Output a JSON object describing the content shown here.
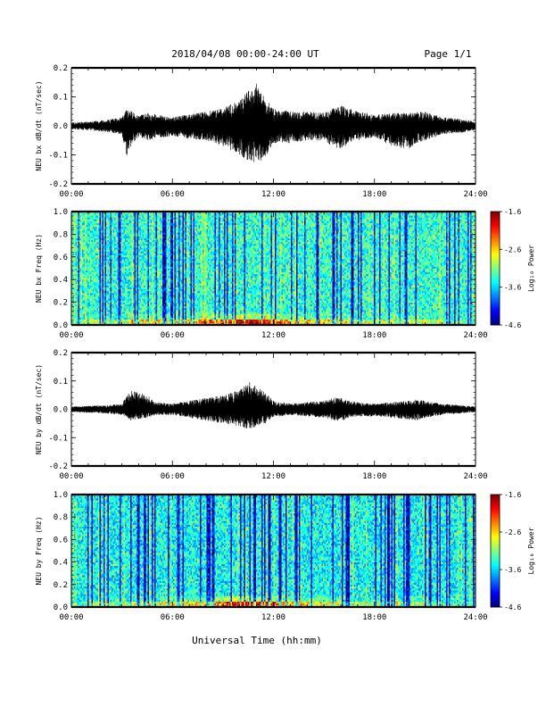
{
  "header": {
    "title": "2018/04/08  00:00-24:00 UT",
    "page": "Page 1/1"
  },
  "x_axis": {
    "title": "Universal Time (hh:mm)",
    "ticks": [
      "00:00",
      "06:00",
      "12:00",
      "18:00",
      "24:00"
    ]
  },
  "chart_data": [
    {
      "type": "line",
      "ylabel": "NEU bx dB/dt (nT/sec)",
      "ylim": [
        -0.2,
        0.2
      ],
      "yticks": [
        "0.2",
        "0.1",
        "0.0",
        "-0.1",
        "-0.2"
      ],
      "xlim": [
        "00:00",
        "24:00"
      ],
      "envelope": {
        "hours": [
          0,
          1,
          2,
          3,
          3.3,
          3.6,
          4,
          4.5,
          5,
          6,
          7,
          8,
          9,
          10,
          10.5,
          11,
          11.5,
          12,
          13,
          14,
          15,
          15.5,
          16,
          16.5,
          17,
          18,
          19,
          20,
          20.5,
          21,
          22,
          23,
          24
        ],
        "max": [
          0.012,
          0.015,
          0.02,
          0.03,
          0.06,
          0.05,
          0.035,
          0.045,
          0.04,
          0.03,
          0.04,
          0.05,
          0.06,
          0.09,
          0.12,
          0.15,
          0.1,
          0.06,
          0.05,
          0.05,
          0.045,
          0.06,
          0.07,
          0.06,
          0.05,
          0.04,
          0.045,
          0.045,
          0.05,
          0.05,
          0.03,
          0.025,
          0.015
        ],
        "min": [
          -0.012,
          -0.015,
          -0.02,
          -0.03,
          -0.11,
          -0.06,
          -0.04,
          -0.05,
          -0.045,
          -0.035,
          -0.045,
          -0.05,
          -0.07,
          -0.1,
          -0.12,
          -0.13,
          -0.11,
          -0.06,
          -0.06,
          -0.05,
          -0.05,
          -0.07,
          -0.08,
          -0.06,
          -0.05,
          -0.04,
          -0.07,
          -0.08,
          -0.06,
          -0.05,
          -0.03,
          -0.025,
          -0.015
        ]
      }
    },
    {
      "type": "heatmap",
      "ylabel": "NEU bx Freq (Hz)",
      "ylim": [
        0.0,
        1.0
      ],
      "yticks": [
        "1.0",
        "0.8",
        "0.6",
        "0.4",
        "0.2",
        "0.0"
      ],
      "xlim": [
        "00:00",
        "24:00"
      ],
      "colorbar": {
        "title": "Log₁₀ Power",
        "ticks": [
          "-1.6",
          "-2.6",
          "-3.6",
          "-4.6"
        ],
        "range": [
          -4.6,
          -1.6
        ]
      },
      "description_level": "background log power about -3.3 with dark vertical striations; enhanced power below 0.05 Hz peaking near 10:00-11:00"
    },
    {
      "type": "line",
      "ylabel": "NEU by dB/dt (nT/sec)",
      "ylim": [
        -0.2,
        0.2
      ],
      "yticks": [
        "0.2",
        "0.1",
        "0.0",
        "-0.1",
        "-0.2"
      ],
      "xlim": [
        "00:00",
        "24:00"
      ],
      "envelope": {
        "hours": [
          0,
          1,
          2,
          3,
          3.5,
          4,
          4.5,
          5,
          6,
          7,
          8,
          9,
          10,
          10.5,
          11,
          11.5,
          12,
          13,
          14,
          15,
          15.5,
          16,
          16.5,
          17,
          18,
          19,
          20,
          20.5,
          21,
          22,
          23,
          24
        ],
        "max": [
          0.01,
          0.012,
          0.015,
          0.02,
          0.065,
          0.06,
          0.05,
          0.025,
          0.02,
          0.03,
          0.04,
          0.05,
          0.07,
          0.1,
          0.08,
          0.06,
          0.03,
          0.02,
          0.025,
          0.03,
          0.04,
          0.04,
          0.03,
          0.025,
          0.02,
          0.025,
          0.03,
          0.035,
          0.03,
          0.02,
          0.015,
          0.01
        ],
        "min": [
          -0.01,
          -0.012,
          -0.015,
          -0.02,
          -0.04,
          -0.035,
          -0.03,
          -0.02,
          -0.02,
          -0.03,
          -0.04,
          -0.05,
          -0.06,
          -0.07,
          -0.06,
          -0.05,
          -0.03,
          -0.02,
          -0.025,
          -0.03,
          -0.04,
          -0.045,
          -0.03,
          -0.025,
          -0.025,
          -0.03,
          -0.035,
          -0.04,
          -0.03,
          -0.02,
          -0.015,
          -0.01
        ]
      }
    },
    {
      "type": "heatmap",
      "ylabel": "NEU by Freq (Hz)",
      "ylim": [
        0.0,
        1.0
      ],
      "yticks": [
        "1.0",
        "0.8",
        "0.6",
        "0.4",
        "0.2",
        "0.0"
      ],
      "xlim": [
        "00:00",
        "24:00"
      ],
      "colorbar": {
        "title": "Log₁₀ Power",
        "ticks": [
          "-1.6",
          "-2.6",
          "-3.6",
          "-4.6"
        ],
        "range": [
          -4.6,
          -1.6
        ]
      },
      "description_level": "background log power about -3.4 with dark vertical striations; enhanced power below 0.05 Hz between 03:00 and 16:00"
    }
  ]
}
